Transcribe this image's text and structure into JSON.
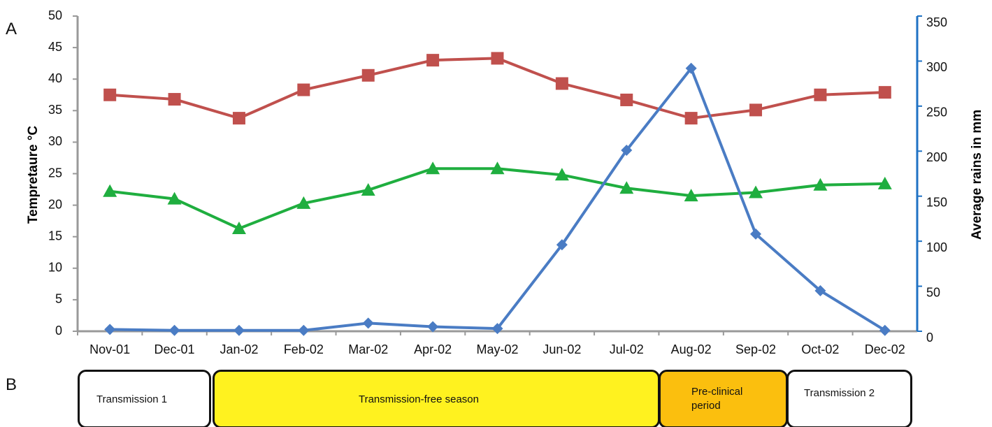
{
  "panel_labels": [
    "A",
    "B"
  ],
  "chart_data": {
    "type": "line",
    "ylabel": "Tempretaure °C",
    "y2label": "Average rains in mm",
    "categories": [
      "Nov-01",
      "Dec-01",
      "Jan-02",
      "Feb-02",
      "Mar-02",
      "Apr-02",
      "May-02",
      "Jun-02",
      "Jul-02",
      "Aug-02",
      "Sep-02",
      "Oct-02",
      "Dec-02"
    ],
    "ylim": [
      0,
      50
    ],
    "yticks": [
      0,
      5,
      10,
      15,
      20,
      25,
      30,
      35,
      40,
      45,
      50
    ],
    "y2lim": [
      0,
      350
    ],
    "y2ticks": [
      0,
      50,
      100,
      150,
      200,
      250,
      300,
      350
    ],
    "series": [
      {
        "color": "#c0504d",
        "marker": "square",
        "values": [
          37.5,
          36.8,
          33.8,
          38.3,
          40.6,
          43,
          43.3,
          39.3,
          36.7,
          33.8,
          35.1,
          37.5,
          37.9
        ]
      },
      {
        "color": "#1fae3f",
        "marker": "triangle",
        "values": [
          22.2,
          21,
          16.3,
          20.3,
          22.4,
          25.8,
          25.8,
          24.8,
          22.7,
          21.5,
          22,
          23.2,
          23.4
        ]
      },
      {
        "color": "#4a7cc4",
        "marker": "diamond",
        "axis": "y2",
        "values": [
          2,
          1,
          1,
          1,
          9,
          5,
          3,
          96,
          201,
          292,
          108,
          45,
          1
        ]
      }
    ]
  },
  "periods": [
    "Transmission 1",
    "Transmission-free season",
    "Pre-clinical period",
    "Transmission 2"
  ]
}
